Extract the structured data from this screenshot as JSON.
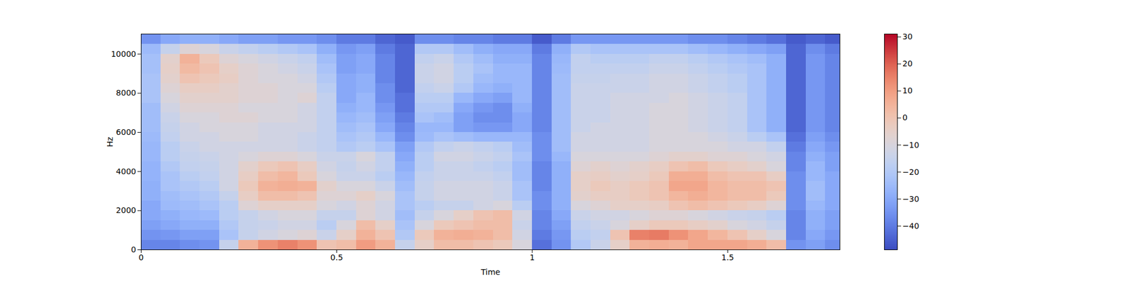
{
  "chart_data": {
    "type": "heatmap",
    "x_label": "Time",
    "y_label": "Hz",
    "xlim": [
      0,
      1.787
    ],
    "ylim": [
      0,
      11025
    ],
    "xticks": [
      0,
      0.5,
      1,
      1.5
    ],
    "yticks": [
      0,
      2000,
      4000,
      6000,
      8000,
      10000
    ],
    "x_edges": [
      0,
      0.05,
      0.1,
      0.15,
      0.2,
      0.25,
      0.3,
      0.35,
      0.4,
      0.45,
      0.5,
      0.55,
      0.6,
      0.65,
      0.7,
      0.75,
      0.8,
      0.85,
      0.9,
      0.95,
      1.0,
      1.05,
      1.1,
      1.15,
      1.2,
      1.25,
      1.3,
      1.35,
      1.4,
      1.45,
      1.5,
      1.55,
      1.6,
      1.65,
      1.7,
      1.75,
      1.787
    ],
    "y_edges": [
      0,
      500,
      1000,
      1500,
      2000,
      2500,
      3000,
      3500,
      4000,
      4500,
      5000,
      5500,
      6000,
      6500,
      7000,
      7500,
      8000,
      8500,
      9000,
      9500,
      10000,
      10500,
      11025
    ],
    "cells": [
      [
        -38,
        -35,
        -32,
        -30,
        -30,
        -28,
        -28,
        -27,
        -27,
        -26,
        -26,
        -25,
        -24,
        -24,
        -24,
        -22,
        -22,
        -22,
        -23,
        -23,
        -25,
        -35
      ],
      [
        -38,
        -34,
        -30,
        -28,
        -25,
        -24,
        -22,
        -22,
        -20,
        -18,
        -18,
        -16,
        -15,
        -14,
        -12,
        -10,
        -8,
        -6,
        -5,
        -6,
        -15,
        -30
      ],
      [
        -36,
        -32,
        -28,
        -26,
        -24,
        -22,
        -20,
        -18,
        -16,
        -15,
        -14,
        -12,
        -12,
        -10,
        -8,
        -6,
        -4,
        0,
        3,
        5,
        -8,
        -28
      ],
      [
        -35,
        -32,
        -28,
        -25,
        -22,
        -20,
        -18,
        -16,
        -15,
        -14,
        -12,
        -12,
        -10,
        -10,
        -8,
        -6,
        -4,
        -2,
        0,
        -2,
        -10,
        -28
      ],
      [
        -15,
        -22,
        -20,
        -18,
        -18,
        -15,
        -12,
        -12,
        -12,
        -12,
        -12,
        -10,
        -10,
        -8,
        -8,
        -6,
        -6,
        -4,
        -5,
        -8,
        -14,
        -30
      ],
      [
        5,
        -15,
        -15,
        -15,
        -8,
        -4,
        -2,
        -4,
        -6,
        -10,
        -12,
        -10,
        -10,
        -8,
        -10,
        -8,
        -8,
        -8,
        -8,
        -10,
        -16,
        -32
      ],
      [
        12,
        -12,
        -14,
        -12,
        -5,
        2,
        5,
        2,
        -2,
        -8,
        -12,
        -12,
        -12,
        -10,
        -10,
        -8,
        -8,
        -10,
        -10,
        -12,
        -18,
        -32
      ],
      [
        15,
        -10,
        -12,
        -10,
        -5,
        2,
        6,
        4,
        0,
        -8,
        -12,
        -12,
        -12,
        -10,
        -10,
        -10,
        -10,
        -10,
        -12,
        -14,
        -20,
        -34
      ],
      [
        12,
        -8,
        -12,
        -10,
        -5,
        0,
        5,
        -2,
        -4,
        -10,
        -14,
        -14,
        -12,
        -12,
        -12,
        -8,
        -10,
        -12,
        -14,
        -16,
        -22,
        -34
      ],
      [
        0,
        -14,
        -18,
        -15,
        -10,
        -8,
        -6,
        -10,
        -12,
        -14,
        -16,
        -16,
        -16,
        -16,
        -16,
        -16,
        -18,
        -20,
        -22,
        -24,
        -28,
        -36
      ],
      [
        2,
        -5,
        -10,
        -15,
        -12,
        -8,
        -10,
        -14,
        -15,
        -14,
        -20,
        -22,
        -24,
        -26,
        -28,
        -30,
        -30,
        -30,
        -32,
        -32,
        -34,
        -40
      ],
      [
        10,
        5,
        2,
        -8,
        -8,
        -5,
        -10,
        -14,
        -12,
        -10,
        -18,
        -20,
        -22,
        -24,
        -26,
        -26,
        -28,
        -28,
        -30,
        -30,
        -32,
        -40
      ],
      [
        5,
        0,
        -5,
        -12,
        -12,
        -10,
        -14,
        -18,
        -16,
        -16,
        -22,
        -26,
        -30,
        -32,
        -34,
        -36,
        -36,
        -38,
        -38,
        -38,
        -40,
        -44
      ],
      [
        -15,
        -20,
        -22,
        -24,
        -22,
        -22,
        -24,
        -26,
        -28,
        -30,
        -32,
        -36,
        -38,
        -40,
        -42,
        -42,
        -44,
        -44,
        -44,
        -44,
        -44,
        -46
      ],
      [
        -5,
        -2,
        -10,
        -15,
        -18,
        -15,
        -15,
        -16,
        -18,
        -18,
        -20,
        -25,
        -26,
        -22,
        -20,
        -18,
        -16,
        -14,
        -14,
        -16,
        -20,
        -36
      ],
      [
        2,
        5,
        -2,
        -10,
        -15,
        -12,
        -12,
        -14,
        -14,
        -12,
        -16,
        -22,
        -26,
        -24,
        -20,
        -18,
        -14,
        -12,
        -12,
        -14,
        -20,
        -36
      ],
      [
        2,
        6,
        0,
        -5,
        -15,
        -12,
        -12,
        -14,
        -14,
        -12,
        -14,
        -24,
        -32,
        -32,
        -30,
        -26,
        -20,
        -18,
        -18,
        -20,
        -24,
        -38
      ],
      [
        0,
        5,
        2,
        0,
        -12,
        -12,
        -12,
        -14,
        -16,
        -14,
        -16,
        -26,
        -34,
        -36,
        -34,
        -30,
        -26,
        -24,
        -22,
        -24,
        -28,
        -38
      ],
      [
        -2,
        2,
        2,
        2,
        -10,
        -14,
        -14,
        -16,
        -18,
        -16,
        -18,
        -26,
        -34,
        -36,
        -36,
        -32,
        -28,
        -26,
        -26,
        -28,
        -30,
        -40
      ],
      [
        -10,
        -12,
        -14,
        -12,
        -18,
        -22,
        -22,
        -24,
        -24,
        -22,
        -24,
        -26,
        -30,
        -30,
        -28,
        -26,
        -26,
        -26,
        -26,
        -28,
        -30,
        -40
      ],
      [
        -42,
        -40,
        -38,
        -38,
        -36,
        -36,
        -38,
        -38,
        -38,
        -36,
        -36,
        -36,
        -38,
        -38,
        -38,
        -38,
        -38,
        -38,
        -38,
        -38,
        -40,
        -46
      ],
      [
        -35,
        -34,
        -32,
        -30,
        -28,
        -28,
        -28,
        -28,
        -28,
        -26,
        -24,
        -24,
        -24,
        -24,
        -24,
        -24,
        -24,
        -24,
        -25,
        -26,
        -28,
        -40
      ],
      [
        -20,
        -18,
        -16,
        -14,
        -10,
        -6,
        -5,
        -5,
        -8,
        -10,
        -12,
        -12,
        -14,
        -14,
        -14,
        -14,
        -14,
        -15,
        -16,
        -16,
        -20,
        -34
      ],
      [
        -14,
        -16,
        -14,
        -12,
        -8,
        -4,
        -2,
        -4,
        -6,
        -10,
        -12,
        -12,
        -12,
        -14,
        -14,
        -14,
        -14,
        -15,
        -16,
        -18,
        -22,
        -34
      ],
      [
        -5,
        0,
        -10,
        -12,
        -5,
        -4,
        -4,
        -6,
        -8,
        -10,
        -12,
        -12,
        -12,
        -12,
        -12,
        -12,
        -14,
        -14,
        -16,
        -18,
        -22,
        -34
      ],
      [
        5,
        15,
        -5,
        -10,
        -5,
        -2,
        -2,
        -5,
        -6,
        -10,
        -12,
        -12,
        -12,
        -12,
        -12,
        -12,
        -14,
        -14,
        -16,
        -18,
        -22,
        -34
      ],
      [
        6,
        16,
        -2,
        -8,
        -4,
        0,
        0,
        -2,
        -4,
        -8,
        -10,
        -10,
        -10,
        -10,
        -10,
        -12,
        -12,
        -12,
        -14,
        -16,
        -22,
        -34
      ],
      [
        5,
        12,
        -2,
        -8,
        0,
        4,
        8,
        6,
        0,
        -6,
        -10,
        -10,
        -10,
        -10,
        -10,
        -10,
        -12,
        -12,
        -14,
        -16,
        -22,
        -34
      ],
      [
        8,
        8,
        -4,
        -10,
        2,
        6,
        8,
        6,
        2,
        -6,
        -10,
        -10,
        -12,
        -12,
        -12,
        -12,
        -14,
        -14,
        -16,
        -18,
        -24,
        -36
      ],
      [
        8,
        4,
        -6,
        -12,
        0,
        4,
        4,
        2,
        -2,
        -8,
        -10,
        -12,
        -14,
        -14,
        -14,
        -14,
        -16,
        -16,
        -18,
        -20,
        -26,
        -36
      ],
      [
        8,
        0,
        -10,
        -14,
        -2,
        2,
        2,
        0,
        -4,
        -8,
        -12,
        -14,
        -16,
        -16,
        -16,
        -16,
        -18,
        -18,
        -20,
        -22,
        -28,
        -38
      ],
      [
        6,
        -5,
        -12,
        -15,
        -4,
        2,
        2,
        0,
        -6,
        -10,
        -12,
        -18,
        -22,
        -22,
        -22,
        -22,
        -22,
        -22,
        -22,
        -24,
        -30,
        -40
      ],
      [
        2,
        -10,
        -15,
        -18,
        -8,
        -2,
        0,
        -4,
        -10,
        -12,
        -16,
        -22,
        -28,
        -28,
        -28,
        -28,
        -28,
        -28,
        -28,
        -28,
        -32,
        -42
      ],
      [
        -35,
        -38,
        -38,
        -38,
        -36,
        -36,
        -36,
        -36,
        -38,
        -38,
        -40,
        -42,
        -44,
        -44,
        -44,
        -44,
        -44,
        -44,
        -44,
        -44,
        -44,
        -46
      ],
      [
        -32,
        -30,
        -28,
        -28,
        -26,
        -24,
        -24,
        -26,
        -26,
        -28,
        -30,
        -32,
        -34,
        -34,
        -34,
        -34,
        -34,
        -34,
        -34,
        -34,
        -36,
        -44
      ],
      [
        -36,
        -34,
        -32,
        -32,
        -30,
        -30,
        -30,
        -30,
        -32,
        -32,
        -34,
        -36,
        -38,
        -38,
        -38,
        -38,
        -38,
        -38,
        -38,
        -38,
        -40,
        -46
      ]
    ],
    "colorbar": {
      "range": [
        -48.8,
        31.1
      ],
      "ticks": [
        {
          "value": -40,
          "label": "−40"
        },
        {
          "value": -30,
          "label": "−30"
        },
        {
          "value": -20,
          "label": "−20"
        },
        {
          "value": -10,
          "label": "−10"
        },
        0,
        10,
        20,
        30
      ]
    }
  }
}
